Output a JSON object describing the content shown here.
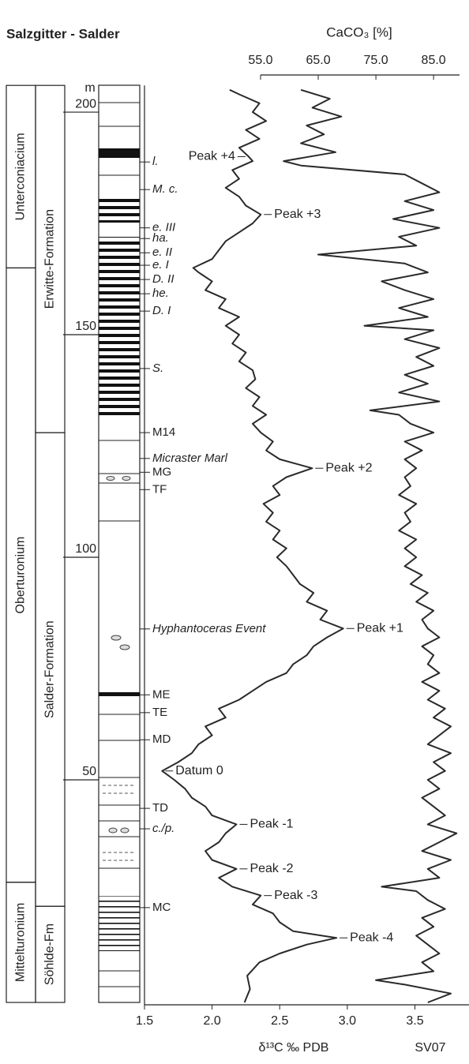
{
  "chart_data": {
    "type": "line",
    "title": "Salzgitter - Salder",
    "y_label": "m",
    "x_label": "δ¹³C ‰ PDB",
    "x2_label": "CaCO₃ [%]",
    "note": "SV07",
    "ylim": [
      0,
      206
    ],
    "yticks": [
      50,
      100,
      150,
      200
    ],
    "xlim": [
      1.5,
      3.9
    ],
    "xticks": [
      1.5,
      {
        "value": 2,
        "label": "2.0"
      },
      2.5,
      {
        "value": 3,
        "label": "3.0"
      },
      3.5
    ],
    "x2lim": [
      55,
      89.5
    ],
    "x2ticks": [
      {
        "value": 55,
        "label": "55.0"
      },
      {
        "value": 65,
        "label": "65.0"
      },
      {
        "value": 75,
        "label": "75.0"
      },
      {
        "value": 85,
        "label": "85.0"
      }
    ],
    "series": [
      {
        "color": "#2a2a2a",
        "depth": [
          0,
          3,
          6,
          9,
          11,
          13,
          14.5,
          16,
          18,
          20,
          22,
          24,
          26,
          28,
          30,
          32,
          34,
          36,
          38,
          40,
          42,
          44,
          46,
          48,
          50,
          52,
          54,
          56,
          58,
          60,
          62,
          64,
          66,
          68,
          70,
          72,
          74,
          76,
          78,
          80,
          82,
          84,
          86,
          88,
          90,
          92,
          94,
          96,
          98,
          100,
          102,
          104,
          106,
          108,
          110,
          112,
          114,
          116,
          118,
          120,
          122,
          124,
          126,
          128,
          130,
          132,
          134,
          136,
          138,
          140,
          142,
          144,
          146,
          148,
          150,
          152,
          154,
          156,
          158,
          160,
          162,
          164,
          165,
          167,
          169,
          171,
          173,
          175,
          177,
          179,
          181,
          183,
          185,
          187,
          189,
          190,
          192,
          194,
          196,
          198,
          200,
          202,
          204,
          205
        ],
        "values": [
          2.24,
          2.28,
          2.26,
          2.35,
          2.5,
          2.7,
          2.92,
          2.6,
          2.5,
          2.45,
          2.3,
          2.36,
          2.15,
          2.05,
          2.18,
          2.0,
          1.95,
          2.05,
          2.1,
          2.18,
          2.0,
          1.95,
          1.85,
          1.8,
          1.72,
          1.63,
          1.75,
          1.85,
          1.9,
          2.0,
          1.95,
          2.1,
          2.05,
          2.2,
          2.3,
          2.4,
          2.55,
          2.6,
          2.7,
          2.75,
          2.85,
          2.97,
          2.8,
          2.85,
          2.7,
          2.75,
          2.65,
          2.6,
          2.55,
          2.48,
          2.55,
          2.45,
          2.5,
          2.4,
          2.45,
          2.38,
          2.5,
          2.45,
          2.55,
          2.74,
          2.5,
          2.4,
          2.45,
          2.36,
          2.3,
          2.4,
          2.3,
          2.35,
          2.25,
          2.32,
          2.3,
          2.2,
          2.25,
          2.15,
          2.2,
          2.1,
          2.2,
          2.05,
          2.1,
          1.95,
          2.0,
          1.9,
          1.86,
          2.0,
          2.05,
          2.1,
          2.2,
          2.3,
          2.36,
          2.25,
          2.2,
          2.1,
          2.2,
          2.15,
          2.3,
          2.27,
          2.2,
          2.35,
          2.25,
          2.4,
          2.3,
          2.35,
          2.2,
          2.13
        ]
      },
      {
        "color": "#2a2a2a",
        "axis": "x2",
        "depth": [
          0,
          2,
          4,
          5,
          7,
          9,
          11,
          13,
          15,
          17,
          19,
          21,
          23,
          25,
          26,
          28,
          30,
          32,
          34,
          36,
          38,
          40,
          42,
          44,
          46,
          48,
          50,
          52,
          54,
          56,
          58,
          60,
          62,
          64,
          66,
          68,
          70,
          72,
          74,
          76,
          78,
          80,
          82,
          84,
          86,
          88,
          90,
          92,
          94,
          96,
          98,
          100,
          102,
          104,
          106,
          108,
          110,
          112,
          114,
          116,
          118,
          120,
          122,
          124,
          126,
          128,
          130,
          132,
          133,
          135,
          137,
          139,
          141,
          143,
          145,
          147,
          149,
          151,
          152,
          154,
          156,
          158,
          160,
          162,
          164,
          166,
          168,
          170,
          172,
          174,
          176,
          178,
          180,
          182,
          184,
          186,
          188,
          189,
          191,
          193,
          195,
          197,
          199,
          201,
          203,
          205
        ],
        "values": [
          84,
          88,
          80,
          75,
          85,
          83,
          86,
          84,
          82,
          85,
          83,
          87,
          84,
          82,
          76,
          86,
          84,
          88,
          83,
          86,
          89,
          84,
          87,
          85,
          83,
          86,
          84,
          87,
          85,
          88,
          84,
          86,
          88,
          85,
          87,
          84,
          86,
          83,
          86,
          84,
          85,
          83,
          86,
          84,
          83,
          85,
          82,
          84,
          81,
          83,
          80,
          82,
          80,
          82,
          79,
          81,
          80,
          82,
          79,
          81,
          80,
          82,
          80,
          83,
          80,
          85,
          81,
          79,
          74,
          86,
          79,
          84,
          80,
          85,
          82,
          86,
          80,
          85,
          73,
          84,
          79,
          85,
          80,
          76,
          84,
          80,
          65,
          82,
          79,
          86,
          78,
          85,
          80,
          86,
          83,
          80,
          62,
          59,
          68,
          62,
          66,
          63,
          69,
          64,
          67,
          62
        ]
      }
    ],
    "chronostratigraphy": [
      {
        "name": "Unterconiacium",
        "top": 206,
        "base": 165
      },
      {
        "name": "Oberturonium",
        "top": 165,
        "base": 27
      },
      {
        "name": "Mittelturonium",
        "top": 27,
        "base": 0
      }
    ],
    "lithostratigraphy": [
      {
        "name": "Erwitte-Formation",
        "top": 206,
        "base": 128
      },
      {
        "name": "Salder-Formation",
        "top": 128,
        "base": 21.6
      },
      {
        "name": "Söhlde-Fm",
        "top": 21.6,
        "base": 0
      }
    ],
    "events": [
      {
        "label": "l.",
        "depth": 188.8
      },
      {
        "label": "M. c.",
        "depth": 182.6
      },
      {
        "label": "e. III",
        "depth": 174
      },
      {
        "label": "ha.",
        "depth": 171.6
      },
      {
        "label": "e. II",
        "depth": 168.4
      },
      {
        "label": "e. I",
        "depth": 165.6
      },
      {
        "label": "D. II",
        "depth": 162.4
      },
      {
        "label": "he.",
        "depth": 159.2
      },
      {
        "label": "D. I",
        "depth": 155.3
      },
      {
        "label": "S.",
        "depth": 142.4
      },
      {
        "label": "M14",
        "depth": 128
      },
      {
        "label": "Micraster Marl",
        "depth": 122.2
      },
      {
        "label": "MG",
        "depth": 119.1
      },
      {
        "label": "TF",
        "depth": 115.2
      },
      {
        "label": "Hyphantoceras Event",
        "depth": 83.9
      },
      {
        "label": "ME",
        "depth": 69.1
      },
      {
        "label": "TE",
        "depth": 65.1
      },
      {
        "label": "MD",
        "depth": 59
      },
      {
        "label": "TD",
        "depth": 43.6
      },
      {
        "label": "c./p.",
        "depth": 39
      },
      {
        "label": "MC",
        "depth": 21.3
      }
    ],
    "peaks": [
      {
        "label": "Peak +4",
        "depth": 190,
        "value": 2.27
      },
      {
        "label": "Peak +3",
        "depth": 177,
        "value": 2.36
      },
      {
        "label": "Peak +2",
        "depth": 120,
        "value": 2.74
      },
      {
        "label": "Peak +1",
        "depth": 84,
        "value": 2.97
      },
      {
        "label": "Datum 0",
        "depth": 52,
        "value": 1.63
      },
      {
        "label": "Peak -1",
        "depth": 40,
        "value": 2.18
      },
      {
        "label": "Peak -2",
        "depth": 30,
        "value": 2.18
      },
      {
        "label": "Peak -3",
        "depth": 24,
        "value": 2.36
      },
      {
        "label": "Peak -4",
        "depth": 14.5,
        "value": 2.92
      }
    ]
  }
}
